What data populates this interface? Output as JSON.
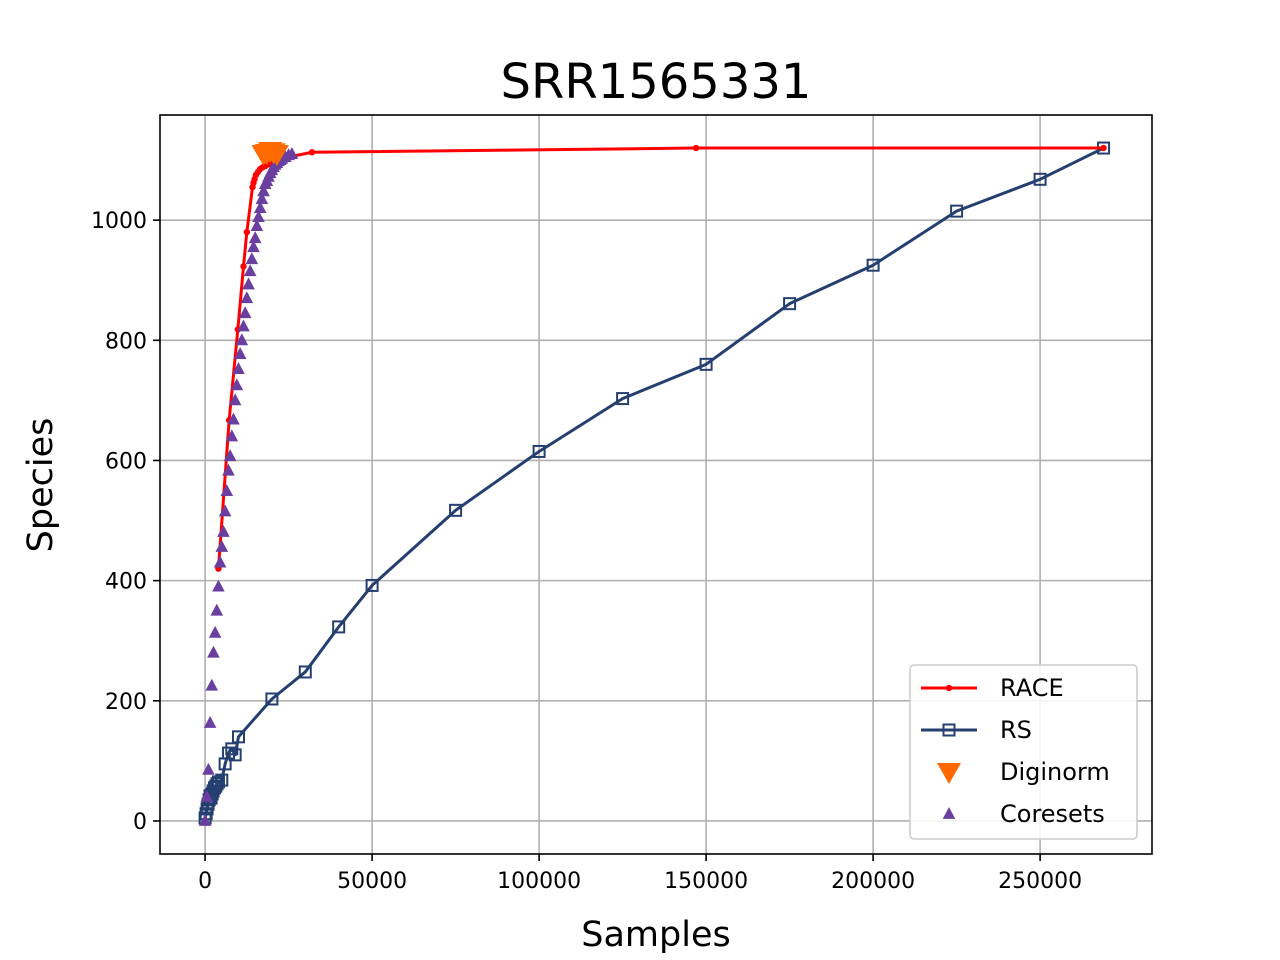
{
  "chart_data": {
    "type": "line",
    "title": "SRR1565331",
    "xlabel": "Samples",
    "ylabel": "Species",
    "xlim": [
      -13500,
      283500
    ],
    "ylim": [
      -55,
      1175
    ],
    "xticks": [
      0,
      50000,
      100000,
      150000,
      200000,
      250000
    ],
    "yticks": [
      0,
      200,
      400,
      600,
      800,
      1000
    ],
    "grid": true,
    "legend_position": "lower right",
    "series": [
      {
        "name": "RACE",
        "style": "line-dot",
        "color": "#ff0000",
        "x": [
          4000,
          7200,
          9800,
          11500,
          12500,
          14200,
          14500,
          14800,
          15200,
          15800,
          16500,
          17200,
          18000,
          19000,
          20000,
          22000,
          25000,
          32000,
          147000,
          269000
        ],
        "y": [
          420,
          667,
          818,
          923,
          980,
          1055,
          1062,
          1068,
          1075,
          1080,
          1085,
          1088,
          1090,
          1093,
          1095,
          1100,
          1105,
          1113,
          1120,
          1120
        ]
      },
      {
        "name": "RS",
        "style": "line-square",
        "color": "#253f70",
        "x": [
          0,
          300,
          600,
          900,
          1200,
          1500,
          1800,
          2100,
          2400,
          2800,
          3200,
          3600,
          4000,
          5000,
          6000,
          7000,
          8000,
          9000,
          10000,
          20000,
          30000,
          40000,
          50000,
          75000,
          100000,
          125000,
          150000,
          175000,
          200000,
          225000,
          250000,
          269000
        ],
        "y": [
          5,
          12,
          20,
          28,
          35,
          42,
          38,
          45,
          50,
          55,
          58,
          62,
          65,
          68,
          95,
          113,
          120,
          110,
          140,
          203,
          248,
          323,
          392,
          517,
          615,
          703,
          760,
          861,
          925,
          1015,
          1068,
          1120
        ],
        "marker_fill": "none"
      },
      {
        "name": "Diginorm",
        "style": "marker-triangle-down",
        "color": "#ff6a00",
        "x": [
          17500,
          18500,
          19500,
          20500,
          21500
        ],
        "y": [
          1110,
          1112,
          1115,
          1113,
          1110
        ]
      },
      {
        "name": "Coresets",
        "style": "marker-triangle-up",
        "color": "#6a3fa0",
        "x": [
          0,
          500,
          1000,
          1500,
          2000,
          2500,
          3000,
          3500,
          4000,
          4500,
          5000,
          5500,
          6000,
          6500,
          7000,
          7500,
          8000,
          8500,
          9000,
          9500,
          10000,
          10500,
          11000,
          11500,
          12000,
          12500,
          13000,
          13500,
          14000,
          14500,
          15000,
          15500,
          16000,
          16500,
          17000,
          17500,
          18000,
          18500,
          19000,
          19500,
          20000,
          20500,
          21000,
          21500,
          22000,
          22500,
          23000,
          24000,
          25000,
          26000
        ],
        "y": [
          0,
          40,
          85,
          163,
          225,
          280,
          313,
          350,
          390,
          430,
          456,
          481,
          515,
          549,
          583,
          607,
          640,
          668,
          700,
          725,
          752,
          777,
          800,
          823,
          845,
          870,
          893,
          915,
          935,
          955,
          970,
          990,
          1005,
          1020,
          1035,
          1048,
          1060,
          1065,
          1072,
          1078,
          1083,
          1088,
          1092,
          1095,
          1098,
          1100,
          1102,
          1105,
          1108,
          1110
        ]
      }
    ]
  }
}
